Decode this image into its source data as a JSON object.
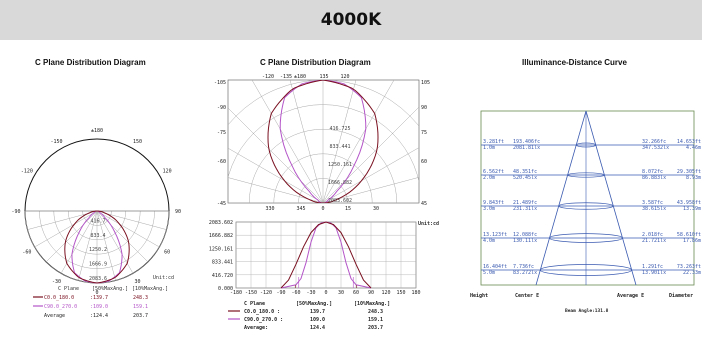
{
  "header": {
    "title": "4000K"
  },
  "colors": {
    "c0": "#7a1020",
    "c90": "#b455c8",
    "grid": "#aaaaaa",
    "blue": "#3a5ab0",
    "green": "#6a8a50"
  },
  "chart_data": [
    {
      "type": "polar",
      "title": "C Plane Distribution Diagram",
      "angle_labels": [
        "±180",
        "150",
        "-150",
        "120",
        "-120",
        "90",
        "-90",
        "60",
        "-60",
        "30",
        "-30",
        "0"
      ],
      "radial_labels": [
        "416.7",
        "833.4",
        "1250.2",
        "1666.9",
        "2083.6"
      ],
      "unit": "Unit:cd",
      "legend": {
        "header": [
          "C Plane",
          "[50%MaxAng.]",
          "[10%MaxAng.]"
        ],
        "rows": [
          {
            "name": "C0.0_180.0",
            "v50": ":139.7",
            "v10": "248.3"
          },
          {
            "name": "C90.0_270.0",
            "v50": ":109.0",
            "v10": "159.1"
          },
          {
            "name": "Average",
            "v50": ":124.4",
            "v10": "203.7"
          }
        ]
      },
      "series": [
        {
          "name": "C0.0_180.0",
          "gamma": [
            0,
            15,
            30,
            45,
            60,
            75,
            90
          ],
          "values": [
            2083.6,
            2000,
            1750,
            1300,
            750,
            250,
            0
          ]
        },
        {
          "name": "C90.0_270.0",
          "gamma": [
            0,
            10,
            20,
            30,
            40,
            50,
            60,
            90
          ],
          "values": [
            2083.6,
            2050,
            1900,
            1450,
            800,
            300,
            100,
            0
          ]
        }
      ]
    },
    {
      "type": "polar_mercator",
      "title": "C Plane Distribution Diagram",
      "top_labels": [
        "-120",
        "-135",
        "±180",
        "135",
        "120"
      ],
      "left_labels": [
        "-105",
        "-90",
        "-75",
        "-60",
        "-45"
      ],
      "right_labels": [
        "105",
        "90",
        "75",
        "60",
        "45"
      ],
      "bottom_labels": [
        "330",
        "345",
        "0",
        "15",
        "30"
      ],
      "radial_labels": [
        "416.725",
        "833.441",
        "1250.161",
        "1666.882",
        "2083.602"
      ]
    },
    {
      "type": "line",
      "y_tick_labels": [
        "2083.602",
        "1666.882",
        "1250.161",
        "833.441",
        "416.720",
        "0.000"
      ],
      "x_tick_labels": [
        "-180",
        "-150",
        "-120",
        "-90",
        "-60",
        "-30",
        "0",
        "30",
        "60",
        "90",
        "120",
        "150",
        "180"
      ],
      "unit": "Unit:cd",
      "xlim": [
        -180,
        180
      ],
      "ylim": [
        0,
        2083.602
      ],
      "series": [
        {
          "name": "C0.0_180.0",
          "x": [
            -90,
            -75,
            -60,
            -45,
            -30,
            -15,
            0,
            15,
            30,
            45,
            60,
            75,
            90
          ],
          "values": [
            0,
            250,
            750,
            1300,
            1750,
            2000,
            2083.6,
            2000,
            1750,
            1300,
            750,
            250,
            0
          ]
        },
        {
          "name": "C90.0_270.0",
          "x": [
            -90,
            -60,
            -50,
            -40,
            -30,
            -20,
            -10,
            0,
            10,
            20,
            30,
            40,
            50,
            60,
            90
          ],
          "values": [
            0,
            100,
            300,
            800,
            1450,
            1900,
            2050,
            2083.6,
            2050,
            1900,
            1450,
            800,
            300,
            100,
            0
          ]
        }
      ],
      "legend": {
        "header": [
          "C Plane",
          "[50%MaxAng.]",
          "[10%MaxAng.]"
        ],
        "rows": [
          {
            "name": "C0.0_180.0 :",
            "v50": "139.7",
            "v10": "248.3"
          },
          {
            "name": "C90.0_270.0 :",
            "v50": "109.0",
            "v10": "159.1"
          },
          {
            "name": "Average:",
            "v50": "124.4",
            "v10": "203.7"
          }
        ]
      }
    },
    {
      "type": "table",
      "title": "Illuminance-Distance Curve",
      "rows": [
        {
          "height_ft": "3.281ft",
          "height_m": "1.0m",
          "center_fc": "193.406fc",
          "center_lx": "2081.81lx",
          "avg_fc": "32.266fc",
          "avg_lx": "347.532lx",
          "dia_ft": "14.653ft",
          "dia_m": "4.46m"
        },
        {
          "height_ft": "6.562ft",
          "height_m": "2.0m",
          "center_fc": "48.351fc",
          "center_lx": "520.45lx",
          "avg_fc": "8.072fc",
          "avg_lx": "86.883lx",
          "dia_ft": "29.305ft",
          "dia_m": "8.93m"
        },
        {
          "height_ft": "9.843ft",
          "height_m": "3.0m",
          "center_fc": "21.489fc",
          "center_lx": "231.31lx",
          "avg_fc": "3.587fc",
          "avg_lx": "38.615lx",
          "dia_ft": "43.958ft",
          "dia_m": "13.39m"
        },
        {
          "height_ft": "13.123ft",
          "height_m": "4.0m",
          "center_fc": "12.088fc",
          "center_lx": "130.11lx",
          "avg_fc": "2.018fc",
          "avg_lx": "21.721lx",
          "dia_ft": "58.610ft",
          "dia_m": "17.86m"
        },
        {
          "height_ft": "16.404ft",
          "height_m": "5.0m",
          "center_fc": "7.736fc",
          "center_lx": "83.272lx",
          "avg_fc": "1.291fc",
          "avg_lx": "13.901lx",
          "dia_ft": "73.263ft",
          "dia_m": "22.33m"
        }
      ],
      "footer_labels": {
        "height": "Height",
        "center": "Center E",
        "average": "Average E",
        "diameter": "Diameter"
      },
      "beam_angle": "Beam Angle:131.8"
    }
  ]
}
